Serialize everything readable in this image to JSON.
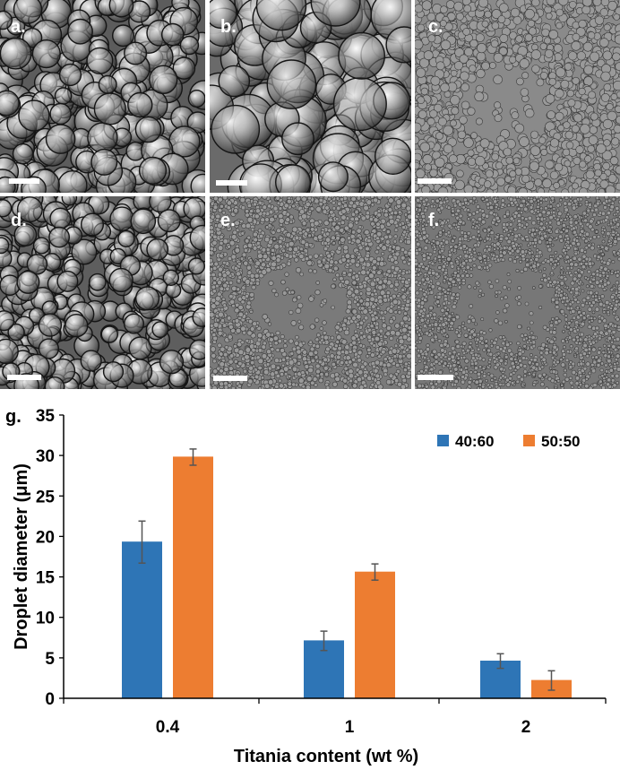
{
  "micrographs": [
    {
      "label": "a.",
      "scene": "large-droplets",
      "tone": "#5c5c5c"
    },
    {
      "label": "b.",
      "scene": "very-large-droplets",
      "tone": "#6a6a6a"
    },
    {
      "label": "c.",
      "scene": "small-droplets-light",
      "tone": "#8a8a8a"
    },
    {
      "label": "d.",
      "scene": "medium-droplets",
      "tone": "#5e5e5e"
    },
    {
      "label": "e.",
      "scene": "fine-droplets",
      "tone": "#7a7a7a"
    },
    {
      "label": "f.",
      "scene": "very-fine-droplets",
      "tone": "#777777"
    }
  ],
  "chart_data": {
    "type": "bar",
    "panel_label": "g.",
    "categories": [
      "0.4",
      "1",
      "2"
    ],
    "series": [
      {
        "name": "40:60",
        "color": "#2e75b6",
        "values": [
          19.3,
          7.1,
          4.6
        ],
        "errors": [
          2.6,
          1.2,
          0.9
        ]
      },
      {
        "name": "50:50",
        "color": "#ed7d31",
        "values": [
          29.8,
          15.6,
          2.2
        ],
        "errors": [
          1.0,
          1.0,
          1.2
        ]
      }
    ],
    "xlabel": "Titania content (wt %)",
    "ylabel": "Droplet diameter (μm)",
    "ylim": [
      0,
      35
    ],
    "yticks": [
      "0",
      "5",
      "10",
      "15",
      "20",
      "25",
      "30",
      "35"
    ],
    "grid": false,
    "legend_position": "top-right"
  }
}
